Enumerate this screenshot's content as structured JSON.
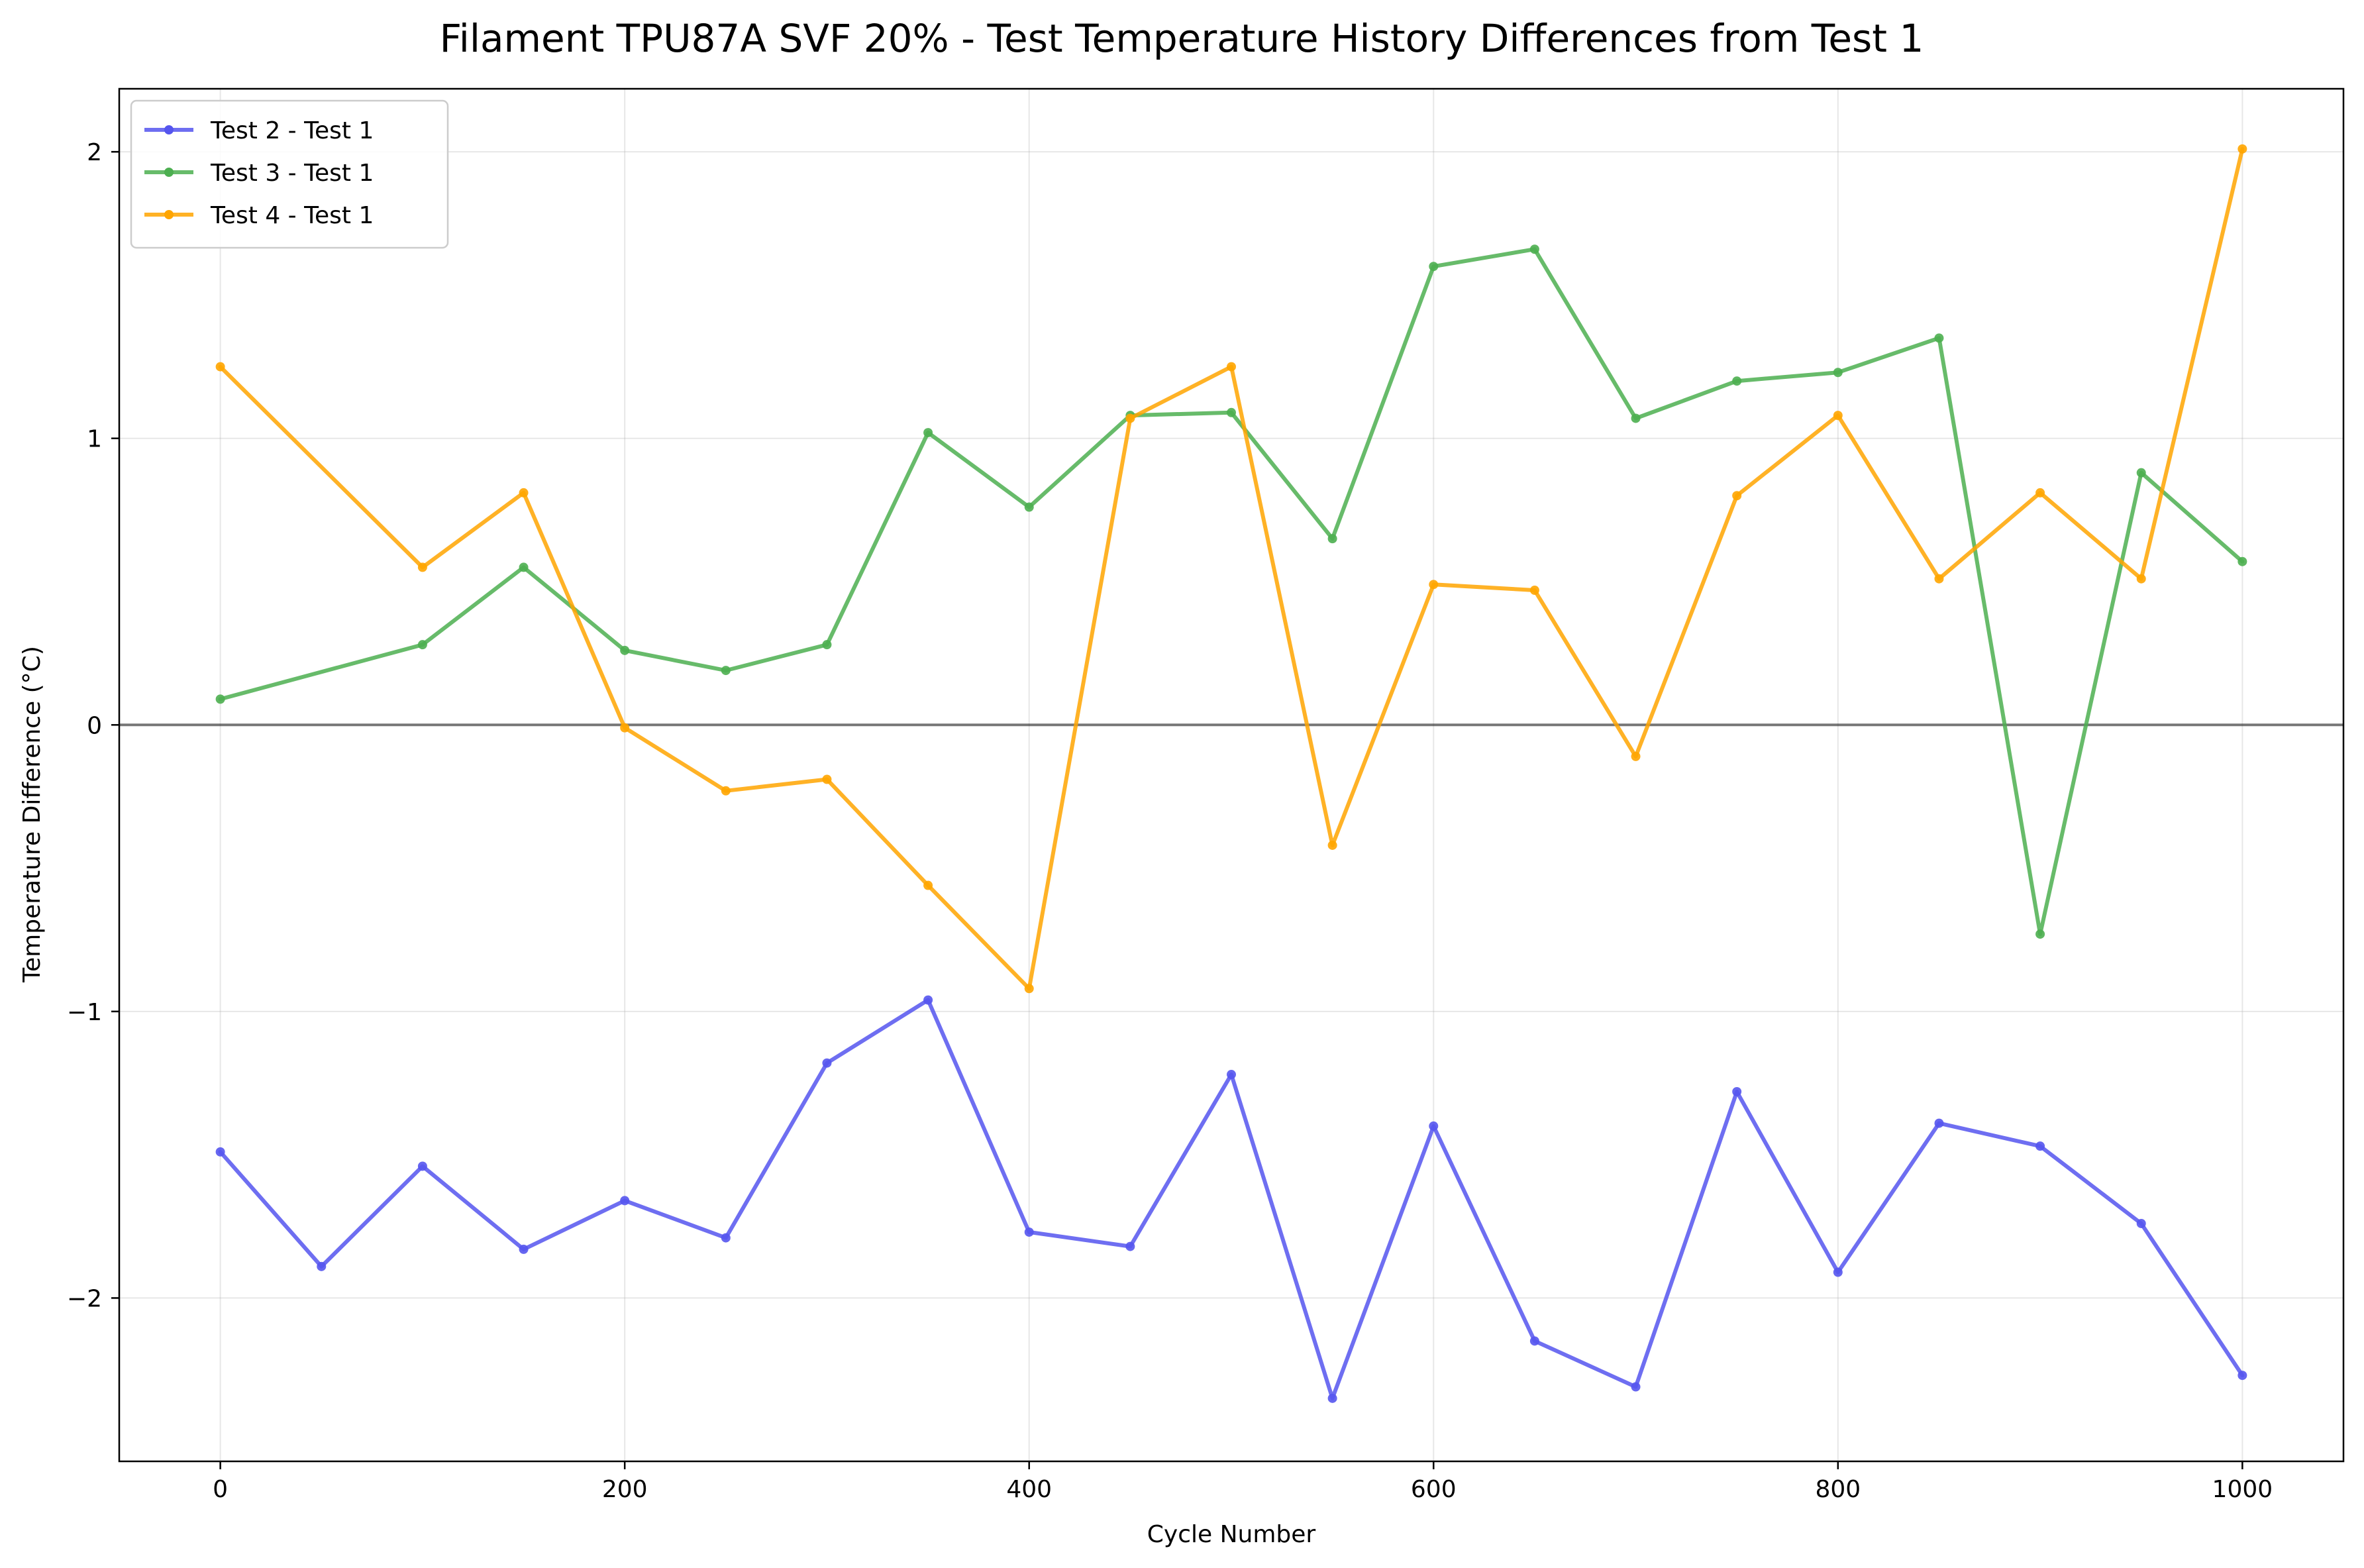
{
  "chart_data": {
    "type": "line",
    "title": "Filament TPU87A SVF 20% - Test Temperature History Differences from Test 1",
    "xlabel": "Cycle Number",
    "ylabel": "Temperature Difference (°C)",
    "xlim": [
      -50,
      1050
    ],
    "ylim": [
      -2.57,
      2.22
    ],
    "xticks": [
      0,
      200,
      400,
      600,
      800,
      1000
    ],
    "xtick_labels": [
      "0",
      "200",
      "400",
      "600",
      "800",
      "1000"
    ],
    "yticks": [
      2,
      1,
      0,
      -1,
      -2
    ],
    "ytick_labels": [
      "2",
      "1",
      "0",
      "−1",
      "−2"
    ],
    "grid": true,
    "legend_position": "upper-left",
    "reference_line": 0,
    "series": [
      {
        "name": "Test 2 - Test 1",
        "color": "#5555ee",
        "x": [
          0,
          50,
          100,
          150,
          200,
          250,
          300,
          350,
          400,
          450,
          500,
          550,
          600,
          650,
          700,
          750,
          800,
          850,
          900,
          950,
          1000
        ],
        "y": [
          -1.49,
          -1.89,
          -1.54,
          -1.83,
          -1.66,
          -1.79,
          -1.18,
          -0.96,
          -1.77,
          -1.82,
          -1.22,
          -2.35,
          -1.4,
          -2.15,
          -2.31,
          -1.28,
          -1.91,
          -1.39,
          -1.47,
          -1.74,
          -2.27
        ]
      },
      {
        "name": "Test 3 - Test 1",
        "color": "#4caf50",
        "x": [
          0,
          100,
          150,
          200,
          250,
          300,
          350,
          400,
          450,
          500,
          550,
          600,
          650,
          700,
          750,
          800,
          850,
          900,
          950,
          1000
        ],
        "y": [
          0.09,
          0.28,
          0.55,
          0.26,
          0.19,
          0.28,
          1.02,
          0.76,
          1.08,
          1.09,
          0.65,
          1.6,
          1.66,
          1.07,
          1.2,
          1.23,
          1.35,
          -0.73,
          0.88,
          0.57
        ]
      },
      {
        "name": "Test 4 - Test 1",
        "color": "#ffa500",
        "x": [
          0,
          100,
          150,
          200,
          250,
          300,
          350,
          400,
          450,
          500,
          550,
          600,
          650,
          700,
          750,
          800,
          850,
          900,
          950,
          1000
        ],
        "y": [
          1.25,
          0.55,
          0.81,
          -0.01,
          -0.23,
          -0.19,
          -0.56,
          -0.92,
          1.07,
          1.25,
          -0.42,
          0.49,
          0.47,
          -0.11,
          0.8,
          1.08,
          0.51,
          0.81,
          0.51,
          2.01
        ]
      }
    ]
  }
}
